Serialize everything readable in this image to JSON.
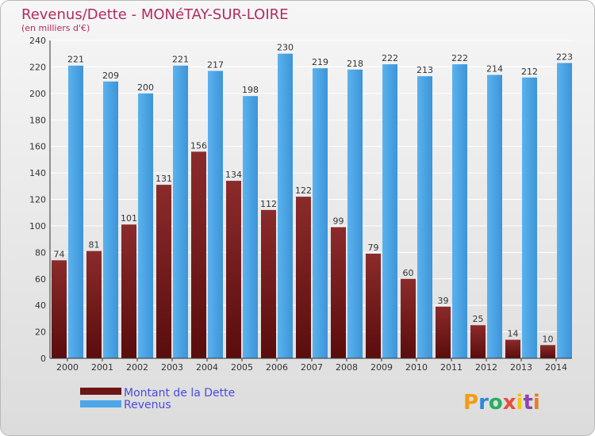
{
  "chart_data": {
    "type": "bar",
    "title": "Revenus/Dette - MONéTAY-SUR-LOIRE",
    "subtitle": "(en milliers d'€)",
    "categories": [
      "2000",
      "2001",
      "2002",
      "2003",
      "2004",
      "2005",
      "2006",
      "2007",
      "2008",
      "2009",
      "2010",
      "2011",
      "2012",
      "2013",
      "2014"
    ],
    "series": [
      {
        "name": "Montant de la Dette",
        "color": "#7a1f1f",
        "values": [
          74,
          81,
          101,
          131,
          156,
          134,
          112,
          122,
          99,
          79,
          60,
          39,
          25,
          14,
          10
        ]
      },
      {
        "name": "Revenus",
        "color": "#4da6e8",
        "values": [
          221,
          209,
          200,
          221,
          217,
          198,
          230,
          219,
          218,
          222,
          213,
          222,
          214,
          212,
          223
        ]
      }
    ],
    "ylim": [
      0,
      240
    ],
    "yticks": [
      0,
      20,
      40,
      60,
      80,
      100,
      120,
      140,
      160,
      180,
      200,
      220,
      240
    ],
    "grid": true,
    "legend": "bottom-left"
  },
  "logo": {
    "letters": [
      "P",
      "r",
      "o",
      "x",
      "i",
      "t",
      "i"
    ],
    "colors": [
      "#f39c12",
      "#2e86de",
      "#27ae60",
      "#e74c3c",
      "#f1c40f",
      "#8e44ad",
      "#e67e22"
    ]
  }
}
